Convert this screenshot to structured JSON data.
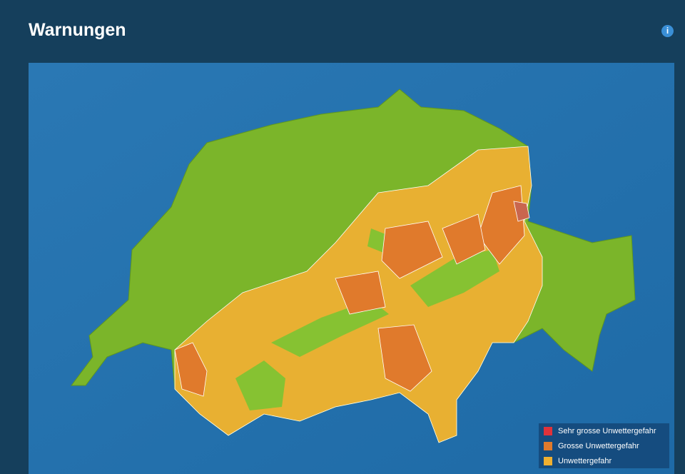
{
  "header": {
    "title": "Warnungen",
    "info": "i"
  },
  "legend": {
    "items": [
      {
        "label": "Sehr grosse Unwettergefahr",
        "color": "#e0323a"
      },
      {
        "label": "Grosse Unwettergefahr",
        "color": "#e07a2c"
      },
      {
        "label": "Unwettergefahr",
        "color": "#f0b030"
      }
    ]
  }
}
